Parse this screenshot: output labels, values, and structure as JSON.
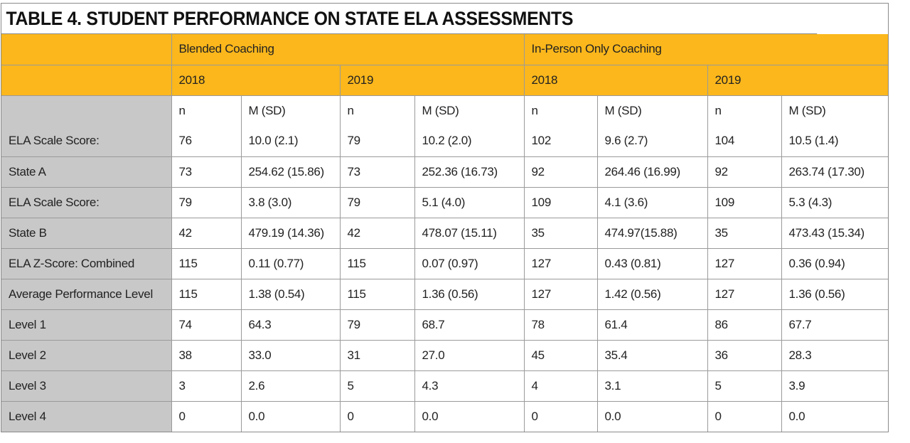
{
  "title": "TABLE 4. STUDENT PERFORMANCE ON STATE ELA ASSESSMENTS",
  "groups": [
    "Blended Coaching",
    "In-Person Only Coaching"
  ],
  "years": [
    "2018",
    "2019",
    "2018",
    "2019"
  ],
  "subheaders": [
    "n",
    "M (SD)",
    "n",
    "M (SD)",
    "n",
    "M (SD)",
    "n",
    "M (SD)"
  ],
  "rows": [
    {
      "label": "ELA Scale Score:",
      "cells": [
        "76",
        "10.0 (2.1)",
        "79",
        "10.2 (2.0)",
        "102",
        "9.6 (2.7)",
        "104",
        "10.5 (1.4)"
      ]
    },
    {
      "label": "State A",
      "cells": [
        "73",
        "254.62 (15.86)",
        "73",
        "252.36 (16.73)",
        "92",
        "264.46 (16.99)",
        "92",
        "263.74 (17.30)"
      ]
    },
    {
      "label": "ELA Scale Score:",
      "cells": [
        "79",
        "3.8 (3.0)",
        "79",
        "5.1 (4.0)",
        "109",
        "4.1 (3.6)",
        "109",
        "5.3 (4.3)"
      ]
    },
    {
      "label": "State B",
      "cells": [
        "42",
        "479.19 (14.36)",
        "42",
        "478.07 (15.11)",
        "35",
        "474.97(15.88)",
        "35",
        "473.43 (15.34)"
      ]
    },
    {
      "label": "ELA Z-Score: Combined",
      "cells": [
        "115",
        "0.11 (0.77)",
        "115",
        "0.07 (0.97)",
        "127",
        "0.43 (0.81)",
        "127",
        "0.36 (0.94)"
      ]
    },
    {
      "label": "Average Performance Level",
      "cells": [
        "115",
        "1.38 (0.54)",
        "115",
        "1.36 (0.56)",
        "127",
        "1.42 (0.56)",
        "127",
        "1.36 (0.56)"
      ]
    },
    {
      "label": "Level 1",
      "cells": [
        "74",
        "64.3",
        "79",
        "68.7",
        "78",
        "61.4",
        "86",
        "67.7"
      ]
    },
    {
      "label": "Level 2",
      "cells": [
        "38",
        "33.0",
        "31",
        "27.0",
        "45",
        "35.4",
        "36",
        "28.3"
      ]
    },
    {
      "label": "Level 3",
      "cells": [
        "3",
        "2.6",
        "5",
        "4.3",
        "4",
        "3.1",
        "5",
        "3.9"
      ]
    },
    {
      "label": "Level 4",
      "cells": [
        "0",
        "0.0",
        "0",
        "0.0",
        "0",
        "0.0",
        "0",
        "0.0"
      ]
    }
  ]
}
